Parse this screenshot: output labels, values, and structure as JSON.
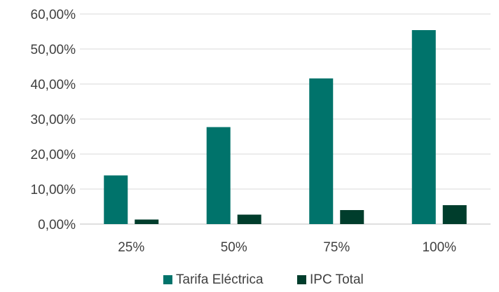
{
  "chart_data": {
    "type": "bar",
    "categories": [
      "25%",
      "50%",
      "75%",
      "100%"
    ],
    "series": [
      {
        "name": "Tarifa Eléctrica",
        "values": [
          13.9,
          27.7,
          41.6,
          55.4
        ],
        "color": "#00736B"
      },
      {
        "name": "IPC Total",
        "values": [
          1.3,
          2.7,
          4.0,
          5.4
        ],
        "color": "#003D2C"
      }
    ],
    "ylim": [
      0,
      60
    ],
    "yticks": [
      0,
      10,
      20,
      30,
      40,
      50,
      60
    ],
    "ytick_labels": [
      "0,00%",
      "10,00%",
      "20,00%",
      "30,00%",
      "40,00%",
      "50,00%",
      "60,00%"
    ],
    "grid": true,
    "legend_position": "bottom",
    "title": "",
    "xlabel": "",
    "ylabel": ""
  }
}
